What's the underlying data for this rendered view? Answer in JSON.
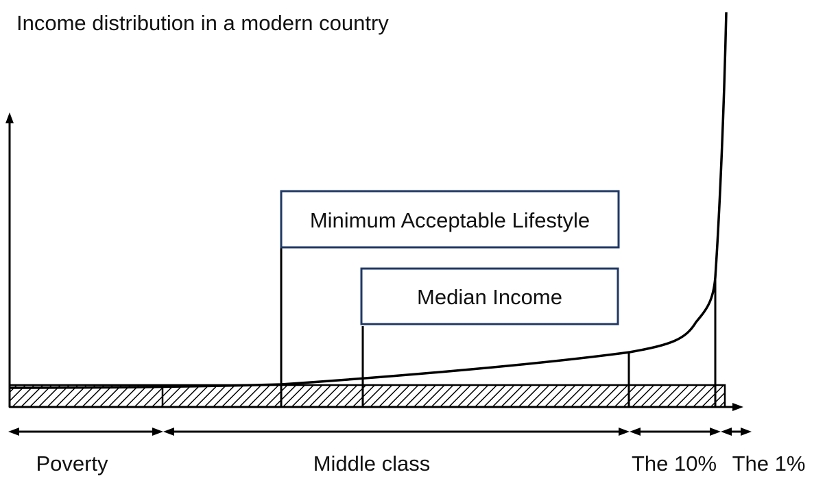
{
  "title": "Income distribution in a modern country",
  "annotations": {
    "minimum_lifestyle": "Minimum Acceptable Lifestyle",
    "median_income": "Median Income"
  },
  "brackets": {
    "poverty": "Poverty",
    "middle_class": "Middle class",
    "top_10": "The 10%",
    "top_1": "The 1%"
  },
  "colors": {
    "ink": "#000000",
    "box_border": "#1f3864"
  }
}
